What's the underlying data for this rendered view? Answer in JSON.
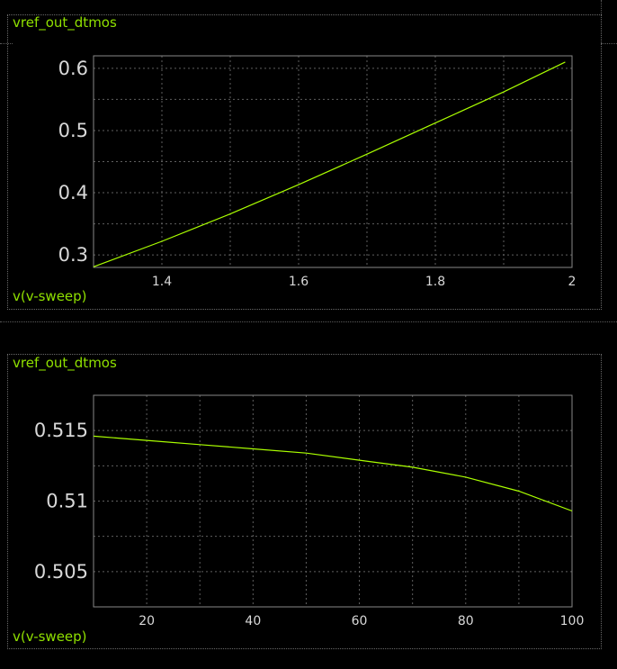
{
  "colors": {
    "background": "#000000",
    "trace": "#aaff00",
    "label": "#8fe000",
    "axis": "#888888",
    "grid": "#5f5f5f",
    "tick_text": "#d8d8d8"
  },
  "chart_data": [
    {
      "type": "line",
      "title": "vref_out_dtmos",
      "xlabel": "v(v-sweep)",
      "xlim": [
        1.3,
        2.0
      ],
      "ylim": [
        0.28,
        0.62
      ],
      "xticks": [
        1.4,
        1.6,
        1.8,
        2
      ],
      "xtick_labels": [
        "1.4",
        "1.6",
        "1.8",
        "2"
      ],
      "yticks": [
        0.3,
        0.4,
        0.5,
        0.6
      ],
      "ytick_labels": [
        "0.3",
        "0.4",
        "0.5",
        "0.6"
      ],
      "grid": true,
      "series": [
        {
          "color": "#aaff00",
          "x": [
            1.3,
            1.4,
            1.5,
            1.6,
            1.7,
            1.8,
            1.9,
            1.99
          ],
          "y": [
            0.281,
            0.322,
            0.366,
            0.413,
            0.462,
            0.512,
            0.562,
            0.61
          ]
        }
      ]
    },
    {
      "type": "line",
      "title": "vref_out_dtmos",
      "xlabel": "v(v-sweep)",
      "xlim": [
        10,
        100
      ],
      "ylim": [
        0.5025,
        0.5175
      ],
      "xticks": [
        20,
        40,
        60,
        80,
        100
      ],
      "xtick_labels": [
        "20",
        "40",
        "60",
        "80",
        "100"
      ],
      "yticks": [
        0.505,
        0.51,
        0.515
      ],
      "ytick_labels": [
        "0.505",
        "0.51",
        "0.515"
      ],
      "grid": true,
      "series": [
        {
          "color": "#aaff00",
          "x": [
            10,
            20,
            30,
            40,
            50,
            60,
            70,
            80,
            90,
            100
          ],
          "y": [
            0.5146,
            0.5143,
            0.514,
            0.5137,
            0.5134,
            0.5129,
            0.5124,
            0.5117,
            0.5107,
            0.5093
          ]
        }
      ]
    }
  ]
}
